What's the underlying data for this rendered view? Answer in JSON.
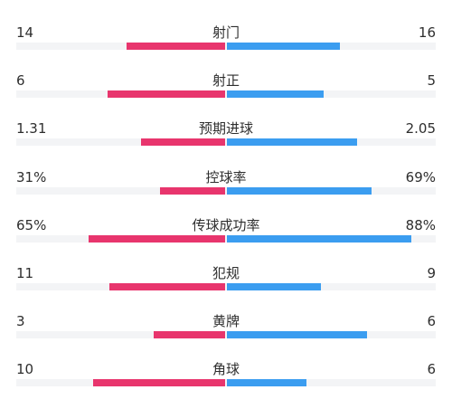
{
  "colors": {
    "home": "#e8356d",
    "away": "#3b9df0",
    "track": "#f3f4f6"
  },
  "stats": [
    {
      "label": "射门",
      "home": "14",
      "away": "16",
      "home_share": 0.47,
      "away_share": 0.54
    },
    {
      "label": "射正",
      "home": "6",
      "away": "5",
      "home_share": 0.56,
      "away_share": 0.46
    },
    {
      "label": "预期进球",
      "home": "1.31",
      "away": "2.05",
      "home_share": 0.4,
      "away_share": 0.62
    },
    {
      "label": "控球率",
      "home": "31%",
      "away": "69%",
      "home_share": 0.31,
      "away_share": 0.69
    },
    {
      "label": "传球成功率",
      "home": "65%",
      "away": "88%",
      "home_share": 0.65,
      "away_share": 0.88
    },
    {
      "label": "犯规",
      "home": "11",
      "away": "9",
      "home_share": 0.55,
      "away_share": 0.45
    },
    {
      "label": "黄牌",
      "home": "3",
      "away": "6",
      "home_share": 0.34,
      "away_share": 0.67
    },
    {
      "label": "角球",
      "home": "10",
      "away": "6",
      "home_share": 0.63,
      "away_share": 0.38
    }
  ]
}
